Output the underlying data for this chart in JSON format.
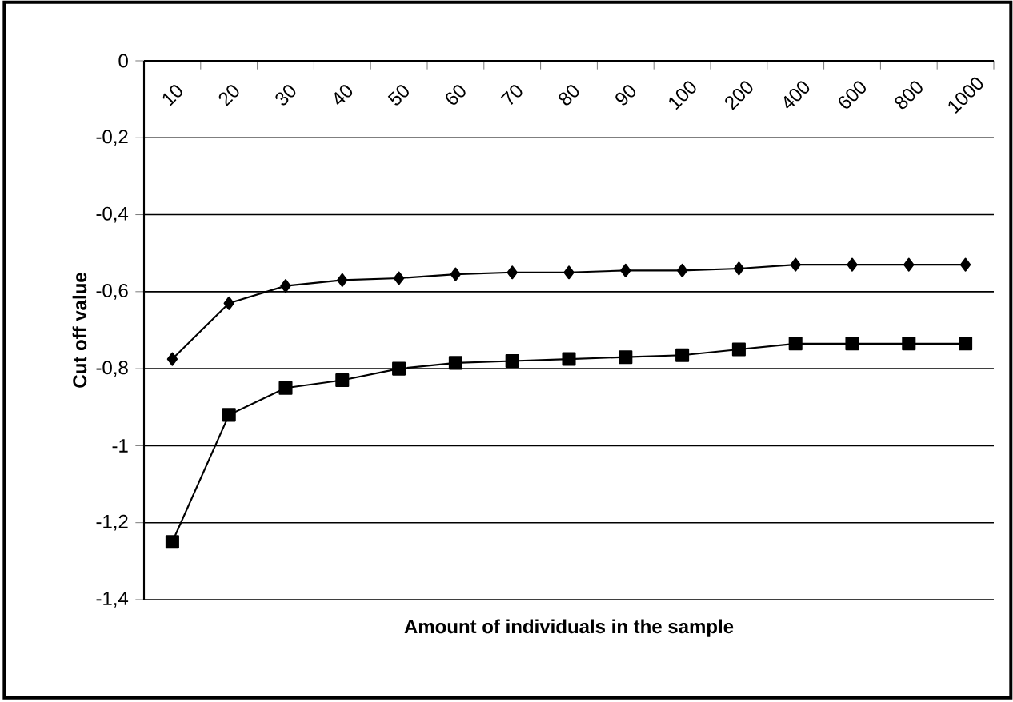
{
  "chart_data": {
    "type": "line",
    "xlabel": "Amount of individuals in the sample",
    "ylabel": "Cut off value",
    "categories": [
      "10",
      "20",
      "30",
      "40",
      "50",
      "60",
      "70",
      "80",
      "90",
      "100",
      "200",
      "400",
      "600",
      "800",
      "1000"
    ],
    "series": [
      {
        "color": "#000000",
        "marker": "diamond",
        "values": [
          -0.775,
          -0.63,
          -0.585,
          -0.57,
          -0.565,
          -0.555,
          -0.55,
          -0.55,
          -0.545,
          -0.545,
          -0.54,
          -0.53,
          -0.53,
          -0.53,
          -0.53
        ]
      },
      {
        "color": "#000000",
        "marker": "square",
        "values": [
          -1.25,
          -0.92,
          -0.85,
          -0.83,
          -0.8,
          -0.785,
          -0.78,
          -0.775,
          -0.77,
          -0.765,
          -0.75,
          -0.735,
          -0.735,
          -0.735,
          -0.735
        ]
      }
    ],
    "ylim": [
      -1.4,
      0
    ],
    "yticks": [
      0,
      {
        "value": -0.2,
        "label": "-0,2"
      },
      {
        "value": -0.4,
        "label": "-0,4"
      },
      {
        "value": -0.6,
        "label": "-0,6"
      },
      {
        "value": -0.8,
        "label": "-0,8"
      },
      -1,
      {
        "value": -1.2,
        "label": "-1,2"
      },
      {
        "value": -1.4,
        "label": "-1,4"
      }
    ],
    "grid": "y",
    "line_style": "solid"
  }
}
